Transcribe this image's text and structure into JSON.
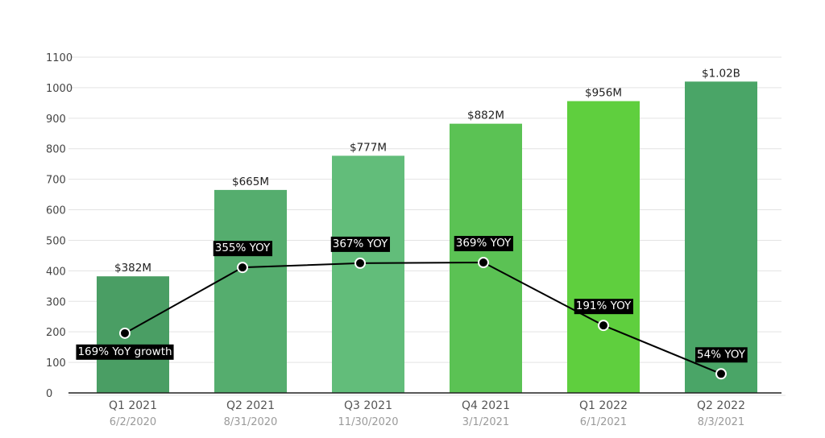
{
  "chart_data": {
    "type": "bar",
    "title": "",
    "xlabel": "",
    "ylabel": "",
    "ylim": [
      0,
      1100
    ],
    "yticks": [
      0,
      100,
      200,
      300,
      400,
      500,
      600,
      700,
      800,
      900,
      1000,
      1100
    ],
    "grid": true,
    "categories": [
      "Q1 2021",
      "Q2 2021",
      "Q3 2021",
      "Q4 2021",
      "Q1 2022",
      "Q2 2022"
    ],
    "dates": [
      "6/2/2020",
      "8/31/2020",
      "11/30/2020",
      "3/1/2021",
      "6/1/2021",
      "8/3/2021"
    ],
    "values": [
      382,
      665,
      777,
      882,
      956,
      1020
    ],
    "value_labels": [
      "$382M",
      "$665M",
      "$777M",
      "$882M",
      "$956M",
      "$1.02B"
    ],
    "bar_colors": [
      "#4a9e64",
      "#55ad6e",
      "#62bd7a",
      "#5bc254",
      "#5fcf3e",
      "#4aa567"
    ],
    "line_series": {
      "name": "YoY growth",
      "type": "line",
      "values": [
        169,
        355,
        367,
        369,
        191,
        54
      ],
      "labels": [
        "169% YoY growth",
        "355% YOY",
        "367% YOY",
        "369% YOY",
        "191% YOY",
        "54% YOY"
      ],
      "label_positions": [
        "below",
        "above",
        "above",
        "above",
        "above",
        "above"
      ],
      "y2lim": [
        0,
        950
      ],
      "color": "#000000"
    }
  }
}
